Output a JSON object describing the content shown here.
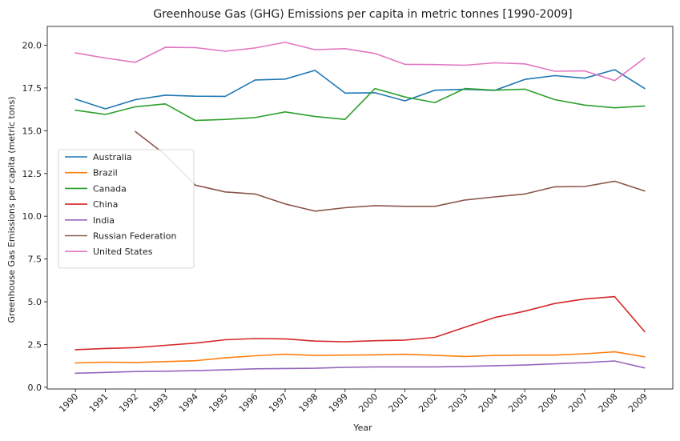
{
  "chart_data": {
    "type": "line",
    "title": "Greenhouse Gas (GHG) Emissions per capita in metric tonnes  [1990-2009]",
    "xlabel": "Year",
    "ylabel": "Greenhouse Gas Emissions per capita (metric tons)",
    "x": [
      "1990",
      "1991",
      "1992",
      "1993",
      "1994",
      "1995",
      "1996",
      "1997",
      "1998",
      "1999",
      "2000",
      "2001",
      "2002",
      "2003",
      "2004",
      "2005",
      "2006",
      "2007",
      "2008",
      "2009"
    ],
    "ylim": [
      -0.1,
      21.1
    ],
    "yticks": [
      0.0,
      2.5,
      5.0,
      7.5,
      10.0,
      12.5,
      15.0,
      17.5,
      20.0
    ],
    "ytick_labels": [
      "0.0",
      "2.5",
      "5.0",
      "7.5",
      "10.0",
      "12.5",
      "15.0",
      "17.5",
      "20.0"
    ],
    "grid": false,
    "legend_position": "center-left",
    "series": [
      {
        "name": "Australia",
        "color": "#1f77b4",
        "values": [
          16.85,
          16.28,
          16.82,
          17.08,
          17.02,
          17.01,
          17.97,
          18.02,
          18.53,
          17.2,
          17.22,
          16.75,
          17.37,
          17.42,
          17.36,
          18.0,
          18.22,
          18.07,
          18.57,
          17.47
        ]
      },
      {
        "name": "Brazil",
        "color": "#ff7f0e",
        "values": [
          1.42,
          1.47,
          1.45,
          1.5,
          1.55,
          1.72,
          1.84,
          1.93,
          1.86,
          1.88,
          1.9,
          1.93,
          1.87,
          1.8,
          1.86,
          1.88,
          1.88,
          1.96,
          2.07,
          1.78
        ]
      },
      {
        "name": "Canada",
        "color": "#2ca02c",
        "values": [
          16.2,
          15.95,
          16.4,
          16.57,
          15.6,
          15.66,
          15.77,
          16.1,
          15.83,
          15.66,
          17.47,
          16.97,
          16.65,
          17.47,
          17.37,
          17.43,
          16.82,
          16.5,
          16.34,
          16.45
        ]
      },
      {
        "name": "China",
        "color": "#d62728",
        "values": [
          2.2,
          2.27,
          2.32,
          2.45,
          2.58,
          2.78,
          2.85,
          2.83,
          2.7,
          2.66,
          2.72,
          2.76,
          2.92,
          3.51,
          4.08,
          4.45,
          4.9,
          5.16,
          5.3,
          3.25
        ]
      },
      {
        "name": "India",
        "color": "#9467bd",
        "values": [
          0.82,
          0.87,
          0.92,
          0.94,
          0.97,
          1.02,
          1.08,
          1.1,
          1.11,
          1.17,
          1.19,
          1.19,
          1.19,
          1.22,
          1.26,
          1.3,
          1.37,
          1.44,
          1.54,
          1.13
        ]
      },
      {
        "name": "Russian Federation",
        "color": "#8c564b",
        "values": [
          null,
          null,
          14.95,
          13.6,
          11.82,
          11.42,
          11.3,
          10.72,
          10.3,
          10.5,
          10.62,
          10.58,
          10.58,
          10.95,
          11.13,
          11.3,
          11.72,
          11.74,
          12.05,
          11.48
        ]
      },
      {
        "name": "United States",
        "color": "#e377c2",
        "values": [
          19.55,
          19.25,
          19.0,
          19.88,
          19.86,
          19.65,
          19.84,
          20.17,
          19.74,
          19.8,
          19.52,
          18.88,
          18.87,
          18.83,
          18.97,
          18.91,
          18.48,
          18.5,
          17.93,
          19.25
        ]
      }
    ]
  }
}
